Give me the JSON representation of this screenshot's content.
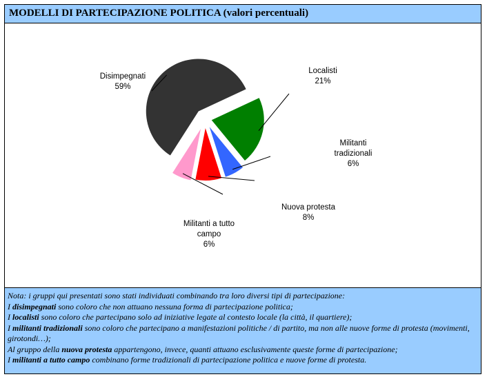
{
  "title": "MODELLI DI PARTECIPAZIONE POLITICA (valori percentuali)",
  "chart_data": {
    "type": "pie",
    "title": "MODELLI DI PARTECIPAZIONE POLITICA (valori percentuali)",
    "slices": [
      {
        "name": "Localisti",
        "value": 21,
        "value_label": "21%",
        "color": "#007f00",
        "name_lines": [
          "Localisti"
        ]
      },
      {
        "name": "Militanti tradizionali",
        "value": 6,
        "value_label": "6%",
        "color": "#3366ff",
        "name_lines": [
          "Militanti",
          "tradizionali"
        ]
      },
      {
        "name": "Nuova protesta",
        "value": 8,
        "value_label": "8%",
        "color": "#ff0000",
        "name_lines": [
          "Nuova protesta"
        ]
      },
      {
        "name": "Militanti a tutto campo",
        "value": 6,
        "value_label": "6%",
        "color": "#ff99cc",
        "name_lines": [
          "Militanti a tutto",
          "campo"
        ]
      },
      {
        "name": "Disimpegnati",
        "value": 59,
        "value_label": "59%",
        "color": "#333333",
        "name_lines": [
          "Disimpegnati"
        ]
      }
    ]
  },
  "notes": {
    "intro": "Nota: i gruppi qui presentati sono stati individuati combinando tra loro diversi tipi di partecipazione:",
    "l1_pre": "I ",
    "l1_bold": "disimpegnati",
    "l1_post": " sono coloro che non attuano nessuna forma di partecipazione politica;",
    "l2_pre": "I ",
    "l2_bold": "localisti",
    "l2_post": " sono coloro che partecipano solo ad iniziative legate al contesto locale (la città, il quartiere);",
    "l3_pre": "I ",
    "l3_bold": "militanti tradizionali",
    "l3_post": " sono coloro che partecipano a manifestazioni politiche / di partito, ma non alle nuove forme di protesta (movimenti, girotondi…);",
    "l4_pre": "Al gruppo della ",
    "l4_bold": "nuova protesta",
    "l4_post": " appartengono, invece, quanti attuano esclusivamente queste forme di partecipazione;",
    "l5_pre": "I ",
    "l5_bold": "militanti a tutto campo",
    "l5_post": " combinano forme tradizionali di partecipazione politica e nuove forme di protesta."
  }
}
